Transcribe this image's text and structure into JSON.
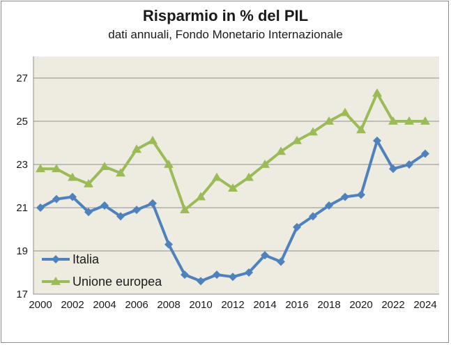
{
  "chart_data": {
    "type": "line",
    "title": "Risparmio in % del PIL",
    "subtitle": "dati annuali, Fondo Monetario Internazionale",
    "xlabel": "",
    "ylabel": "",
    "x": [
      2000,
      2001,
      2002,
      2003,
      2004,
      2005,
      2006,
      2007,
      2008,
      2009,
      2010,
      2011,
      2012,
      2013,
      2014,
      2015,
      2016,
      2017,
      2018,
      2019,
      2020,
      2021,
      2022,
      2023,
      2024
    ],
    "xlim": [
      2000,
      2024
    ],
    "ylim": [
      17,
      28
    ],
    "yticks": [
      17,
      19,
      21,
      23,
      25,
      27
    ],
    "xticks": [
      2000,
      2002,
      2004,
      2006,
      2008,
      2010,
      2012,
      2014,
      2016,
      2018,
      2020,
      2022,
      2024
    ],
    "grid": true,
    "plot_background": "#eeece1",
    "legend_position": "bottom-left",
    "series": [
      {
        "name": "Italia",
        "color": "#4f81bd",
        "marker": "diamond",
        "values": [
          21.0,
          21.4,
          21.5,
          20.8,
          21.1,
          20.6,
          20.9,
          21.2,
          19.3,
          17.9,
          17.6,
          17.9,
          17.8,
          18.0,
          18.8,
          18.5,
          20.1,
          20.6,
          21.1,
          21.5,
          21.6,
          24.1,
          22.8,
          23.0,
          23.5
        ]
      },
      {
        "name": "Unione europea",
        "color": "#9bbb59",
        "marker": "triangle",
        "values": [
          22.8,
          22.8,
          22.4,
          22.1,
          22.9,
          22.6,
          23.7,
          24.1,
          23.0,
          20.9,
          21.5,
          22.4,
          21.9,
          22.4,
          23.0,
          23.6,
          24.1,
          24.5,
          25.0,
          25.4,
          24.6,
          26.3,
          25.0,
          25.0,
          25.0
        ]
      }
    ]
  }
}
